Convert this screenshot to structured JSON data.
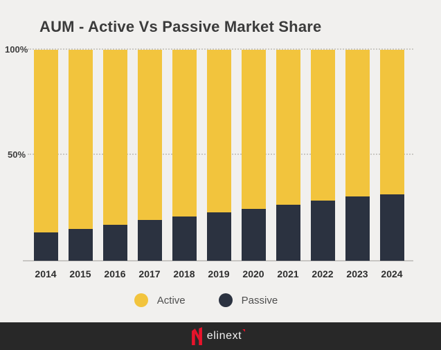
{
  "header": {
    "title": "AUM - Active Vs Passive Market Share"
  },
  "chart_data": {
    "type": "bar",
    "stacked": true,
    "title": "AUM - Active Vs Passive Market Share",
    "categories": [
      "2014",
      "2015",
      "2016",
      "2017",
      "2018",
      "2019",
      "2020",
      "2021",
      "2022",
      "2023",
      "2024"
    ],
    "series": [
      {
        "name": "Active",
        "color": "#F2C43D",
        "values": [
          86.5,
          85,
          83,
          80.5,
          79,
          77,
          75.5,
          73.5,
          71.5,
          69.5,
          68.5
        ]
      },
      {
        "name": "Passive",
        "color": "#2B3240",
        "values": [
          13.5,
          15,
          17,
          19.5,
          21,
          23,
          24.5,
          26.5,
          28.5,
          30.5,
          31.5
        ]
      }
    ],
    "xlabel": "",
    "ylabel": "",
    "ylim": [
      0,
      100
    ],
    "yticks": [
      {
        "value": 50,
        "label": "50%"
      },
      {
        "value": 100,
        "label": "100%"
      }
    ],
    "grid": "horizontal-dotted",
    "legend_position": "bottom"
  },
  "legend": {
    "items": [
      {
        "label": "Active",
        "color": "#F2C43D"
      },
      {
        "label": "Passive",
        "color": "#2B3240"
      }
    ]
  },
  "footer": {
    "brand_text": "elinext",
    "background": "#282828",
    "accent_color": "#E8132B"
  },
  "colors": {
    "background": "#F1F0EE",
    "grid": "#CAC8C4",
    "axis_text": "#3D3D3D",
    "title_text": "#3B3B3B"
  }
}
